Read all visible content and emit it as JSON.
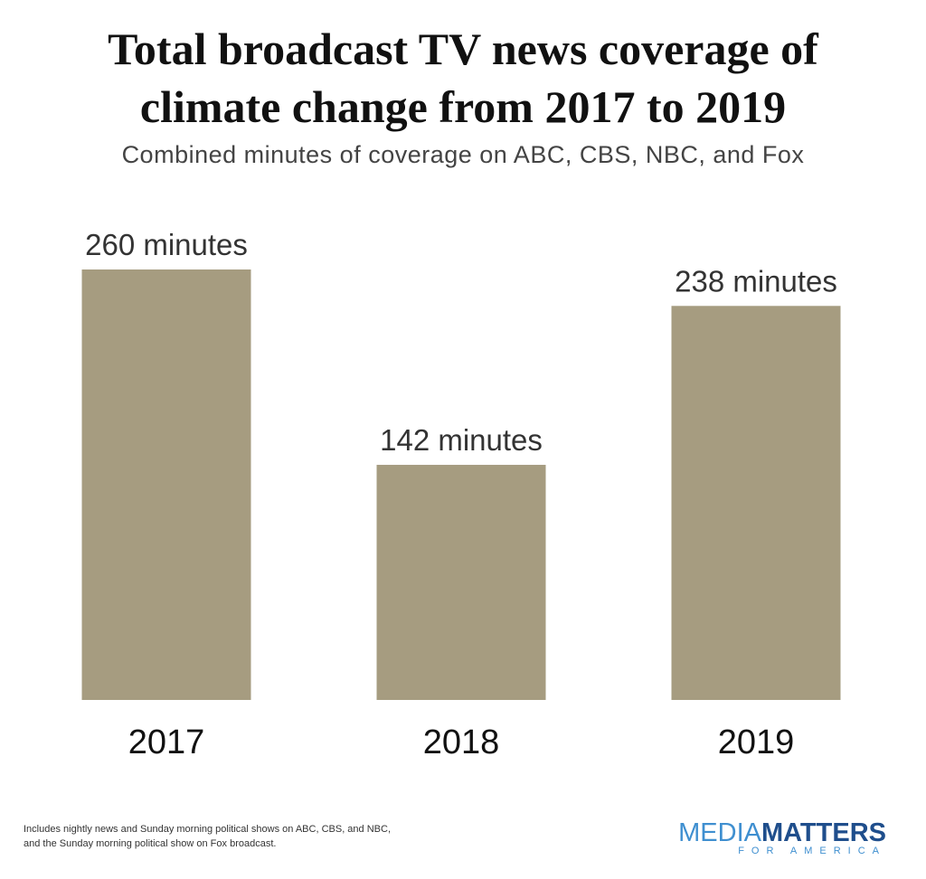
{
  "chart_data": {
    "type": "bar",
    "title": "Total broadcast TV news coverage of climate change from 2017 to 2019",
    "subtitle": "Combined minutes of coverage on ABC, CBS, NBC, and Fox",
    "categories": [
      "2017",
      "2018",
      "2019"
    ],
    "values": [
      260,
      142,
      238
    ],
    "value_labels": [
      "260 minutes",
      "142 minutes",
      "238 minutes"
    ],
    "color": "#a69c80",
    "notes": [
      "Includes nightly news and Sunday morning political shows on ABC, CBS, and NBC,",
      "and the Sunday morning political show on Fox broadcast."
    ],
    "logo": {
      "part1": "MEDIA",
      "part2": "MATTERS",
      "tagline": "FOR AMERICA"
    }
  }
}
